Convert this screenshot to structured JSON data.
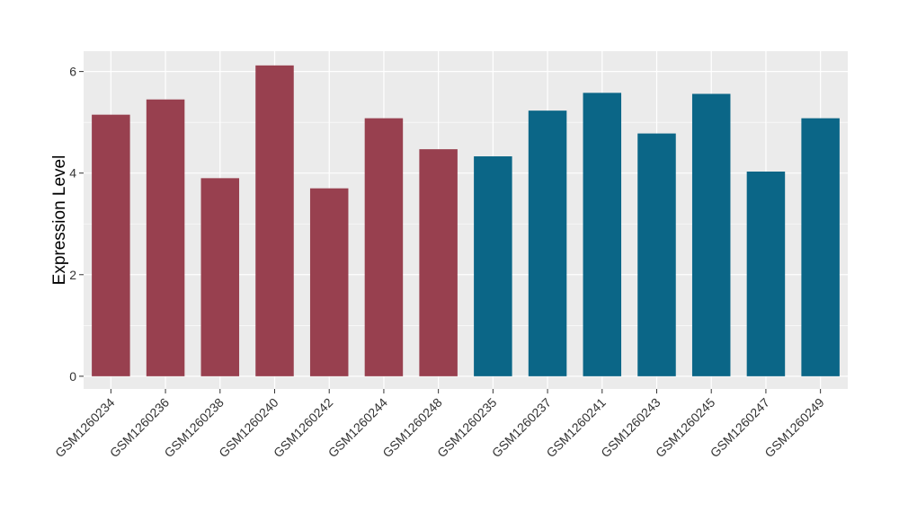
{
  "chart_data": {
    "type": "bar",
    "title": "",
    "xlabel": "",
    "ylabel": "Expression Level",
    "ylim": [
      -0.25,
      6.4
    ],
    "yticks": [
      0,
      2,
      4,
      6
    ],
    "grid": true,
    "legend": "none",
    "colors": {
      "panel_background": "#EBEBEB",
      "grid_major": "#FFFFFF",
      "group_1": "#98404F",
      "group_2": "#0B6687"
    },
    "categories": [
      "GSM1260234",
      "GSM1260236",
      "GSM1260238",
      "GSM1260240",
      "GSM1260242",
      "GSM1260244",
      "GSM1260248",
      "GSM1260235",
      "GSM1260237",
      "GSM1260241",
      "GSM1260243",
      "GSM1260245",
      "GSM1260247",
      "GSM1260249"
    ],
    "values": [
      5.15,
      5.45,
      3.9,
      6.12,
      3.7,
      5.08,
      4.47,
      4.33,
      5.23,
      5.58,
      4.78,
      5.56,
      4.03,
      5.08
    ],
    "bar_colors": [
      "#98404F",
      "#98404F",
      "#98404F",
      "#98404F",
      "#98404F",
      "#98404F",
      "#98404F",
      "#0B6687",
      "#0B6687",
      "#0B6687",
      "#0B6687",
      "#0B6687",
      "#0B6687",
      "#0B6687"
    ]
  }
}
